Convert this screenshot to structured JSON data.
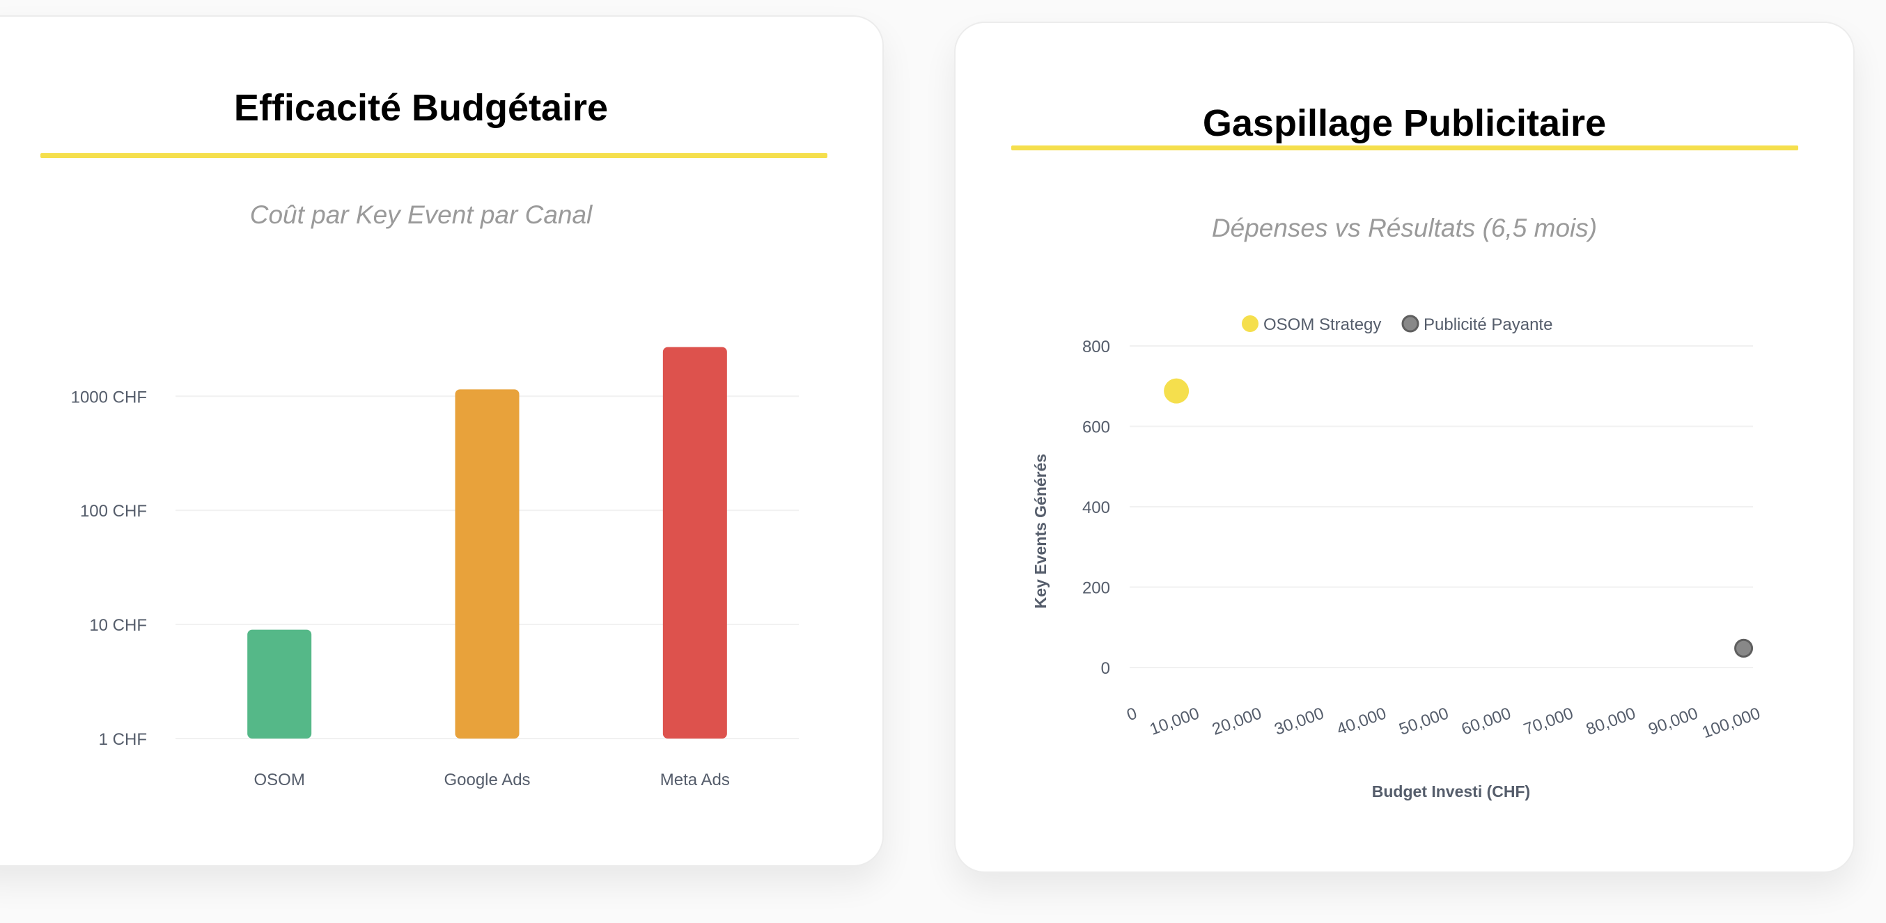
{
  "colors": {
    "accent": "#f5df4d",
    "osom": "#55b888",
    "google": "#e8a23b",
    "meta": "#dd524d",
    "grey_point": "#888888",
    "tick_text": "#555d6b",
    "grid": "#f1f1f1"
  },
  "charts": [
    {
      "title": "Efficacité Budgétaire",
      "subtitle": "Coût par Key Event par Canal"
    },
    {
      "title": "Gaspillage Publicitaire",
      "subtitle": "Dépenses vs Résultats (6,5 mois)"
    }
  ],
  "chart_data": [
    {
      "type": "bar",
      "title": "Efficacité Budgétaire",
      "subtitle": "Coût par Key Event par Canal",
      "categories": [
        "OSOM",
        "Google Ads",
        "Meta Ads"
      ],
      "values": [
        9,
        1150,
        2700
      ],
      "bar_colors": [
        "#55b888",
        "#e8a23b",
        "#dd524d"
      ],
      "y_scale": "log",
      "ylim": [
        1,
        2700
      ],
      "y_ticks": [
        1,
        10,
        100,
        1000
      ],
      "y_tick_labels": [
        "1 CHF",
        "10 CHF",
        "100 CHF",
        "1000 CHF"
      ],
      "grid": true,
      "legend": "none"
    },
    {
      "type": "scatter",
      "title": "Gaspillage Publicitaire",
      "subtitle": "Dépenses vs Résultats (6,5 mois)",
      "xlabel": "Budget Investi (CHF)",
      "ylabel": "Key Events Générés",
      "xlim": [
        0,
        100000
      ],
      "ylim": [
        0,
        800
      ],
      "x_tick_labels": [
        "0",
        "10,000",
        "20,000",
        "30,000",
        "40,000",
        "50,000",
        "60,000",
        "70,000",
        "80,000",
        "90,000",
        "100,000"
      ],
      "y_tick_labels": [
        "0",
        "200",
        "400",
        "600",
        "800"
      ],
      "series": [
        {
          "name": "OSOM Strategy",
          "color": "#f5df4d",
          "points": [
            {
              "x": 7500,
              "y": 688
            }
          ]
        },
        {
          "name": "Publicité Payante",
          "color": "#888888",
          "points": [
            {
              "x": 98500,
              "y": 48
            }
          ]
        }
      ],
      "grid": true,
      "legend": "top"
    }
  ]
}
